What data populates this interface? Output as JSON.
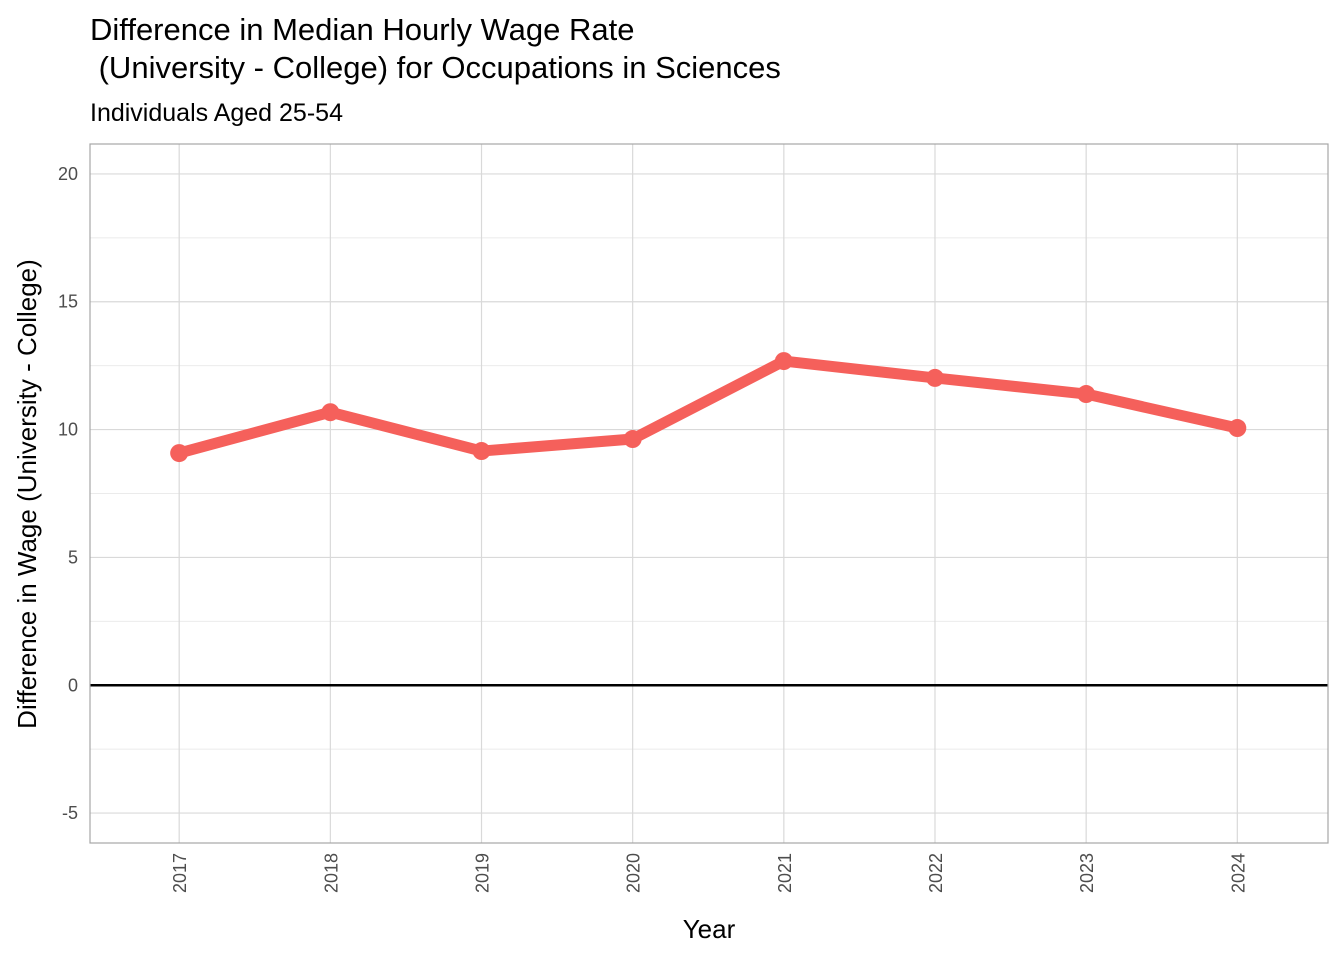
{
  "chart_data": {
    "type": "line",
    "title": [
      "Difference in Median Hourly Wage Rate",
      " (University - College) for Occupations in Sciences"
    ],
    "subtitle": "Individuals Aged 25-54",
    "x_label": "Year",
    "y_label": "Difference in Wage (University - College)",
    "x": [
      2017,
      2018,
      2019,
      2020,
      2021,
      2022,
      2023,
      2024
    ],
    "series": [
      {
        "color": "#f5605b",
        "values": [
          9.08,
          10.68,
          9.16,
          9.63,
          12.68,
          12.02,
          11.39,
          10.06
        ]
      }
    ],
    "xlim": [
      2016.41,
      2024.6
    ],
    "xticks": [
      2017,
      2018,
      2019,
      2020,
      2021,
      2022,
      2023,
      2024
    ],
    "ylim": [
      -6.17,
      21.17
    ],
    "yticks": [
      -5,
      0,
      5,
      10,
      15,
      20
    ],
    "yminor": [
      -2.5,
      2.5,
      7.5,
      12.5,
      17.5
    ],
    "hline": 0,
    "grid": true
  }
}
